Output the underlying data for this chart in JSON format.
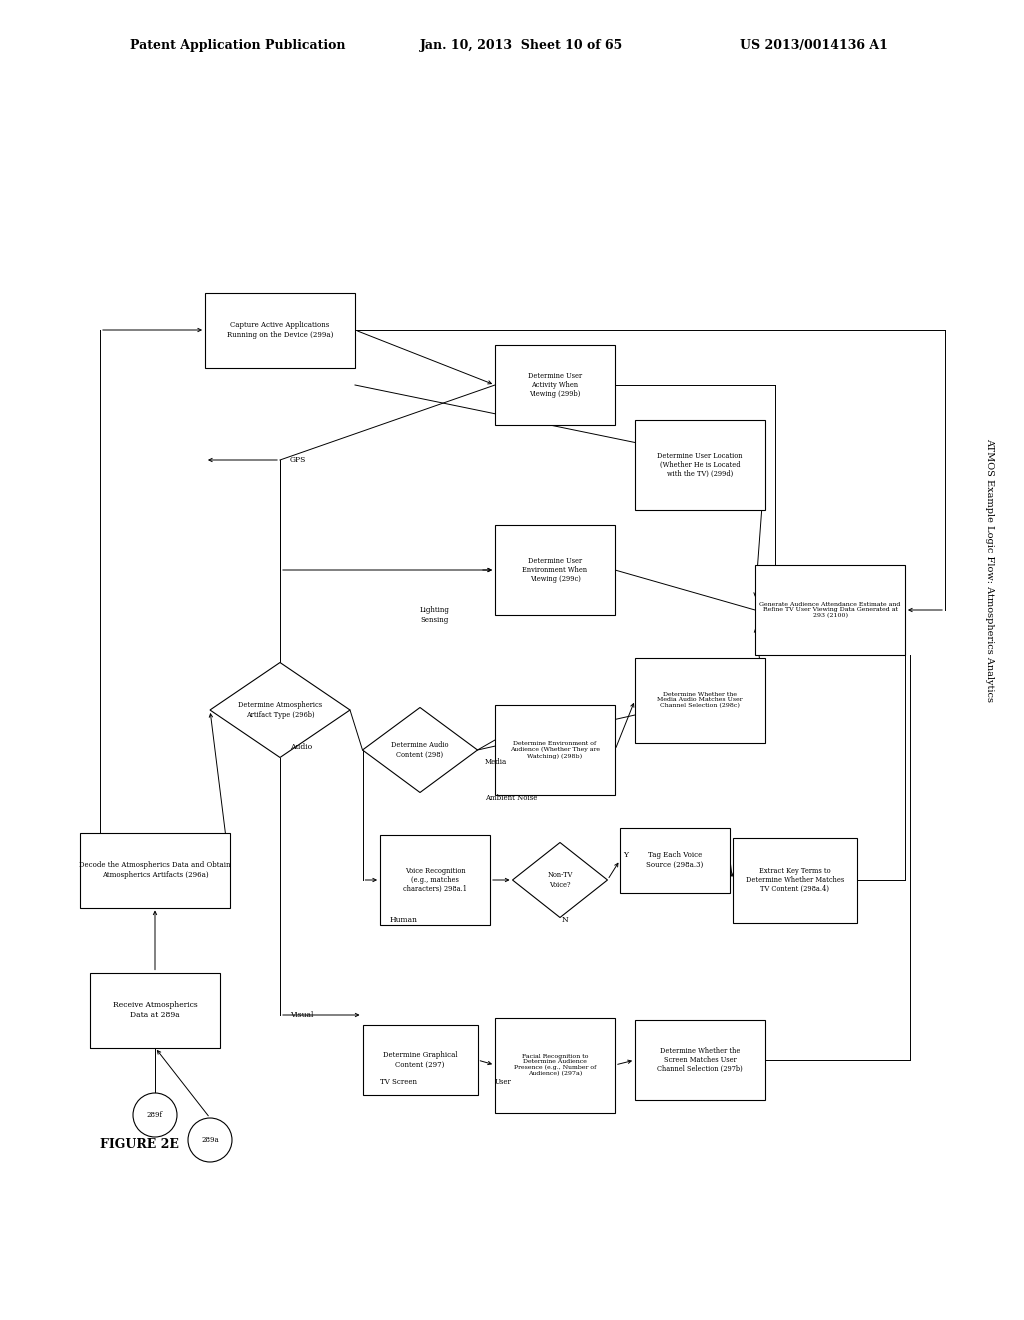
{
  "bg_color": "#ffffff",
  "header_left": "Patent Application Publication",
  "header_mid": "Jan. 10, 2013  Sheet 10 of 65",
  "header_right": "US 2013/0014136 A1",
  "figure_label": "FIGURE 2E",
  "side_label": "ATMOS Example Logic Flow: Atmospherics Analytics",
  "fig_w": 10.24,
  "fig_h": 13.2,
  "dpi": 100
}
